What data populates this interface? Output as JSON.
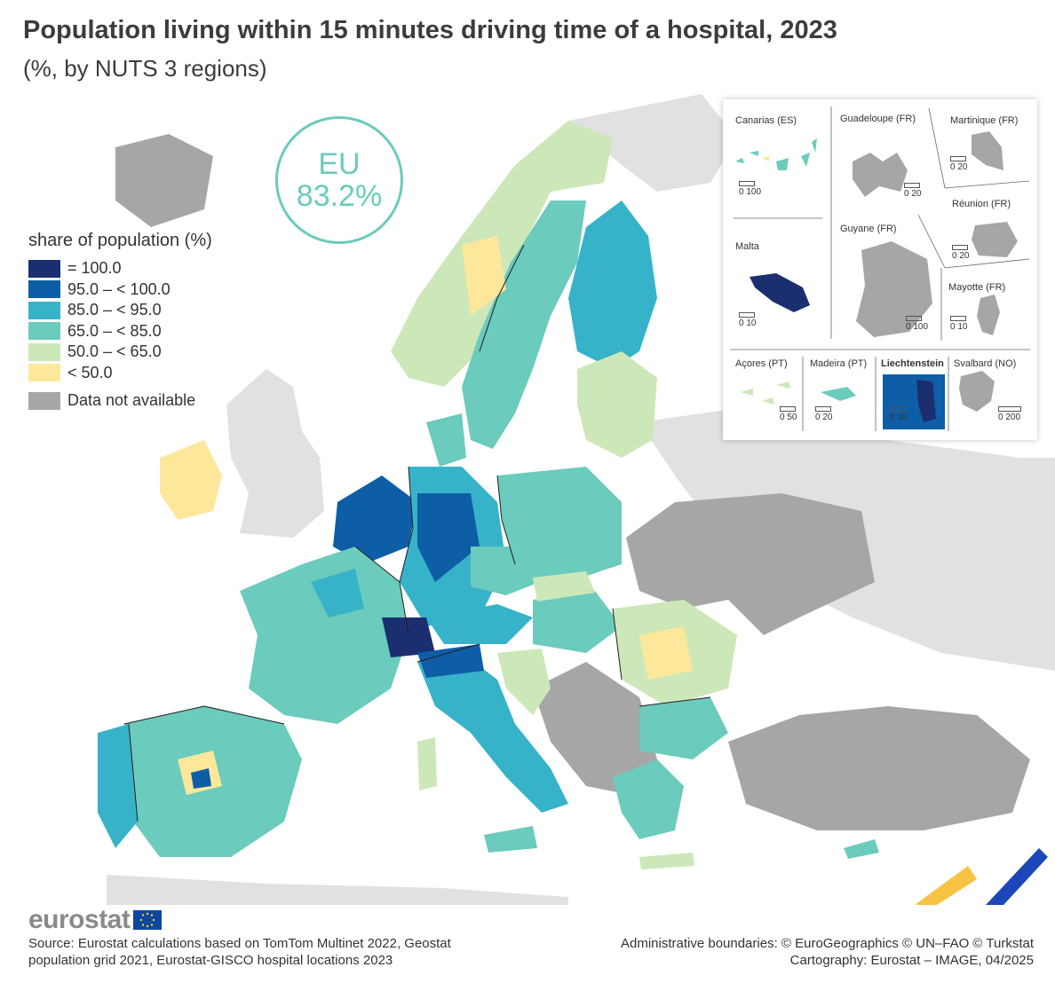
{
  "header": {
    "title": "Population living within 15 minutes driving time of a hospital, 2023",
    "subtitle": "(%, by NUTS 3 regions)"
  },
  "eu_badge": {
    "label": "EU",
    "value": "83.2%"
  },
  "legend": {
    "title": "share of population (%)",
    "classes": [
      {
        "label": "= 100.0",
        "color": "#1b2f70"
      },
      {
        "label": "95.0 – < 100.0",
        "color": "#0d5ea6"
      },
      {
        "label": "85.0 – < 95.0",
        "color": "#37b3c9"
      },
      {
        "label": "65.0 – < 85.0",
        "color": "#6bcbbd"
      },
      {
        "label": "50.0 – < 65.0",
        "color": "#cde8b8"
      },
      {
        "label": "< 50.0",
        "color": "#fde79b"
      }
    ],
    "not_available": {
      "label": "Data not available",
      "color": "#a6a6a6"
    }
  },
  "insets": [
    {
      "name": "Canarias (ES)",
      "scale": "0 100"
    },
    {
      "name": "Guadeloupe (FR)",
      "scale": "0 20"
    },
    {
      "name": "Martinique (FR)",
      "scale": "0 20"
    },
    {
      "name": "Réunion (FR)",
      "scale": "0 20"
    },
    {
      "name": "Malta",
      "scale": "0 10"
    },
    {
      "name": "Guyane (FR)",
      "scale": "0 100"
    },
    {
      "name": "Mayotte (FR)",
      "scale": "0 10"
    },
    {
      "name": "Açores (PT)",
      "scale": "0 50"
    },
    {
      "name": "Madeira (PT)",
      "scale": "0 20"
    },
    {
      "name": "Liechtenstein",
      "scale": "0 10"
    },
    {
      "name": "Svalbard (NO)",
      "scale": "0 200"
    }
  ],
  "footer": {
    "logo": "eurostat",
    "source_line1": "Source: Eurostat calculations based on TomTom Multinet 2022, Geostat",
    "source_line2": "population grid 2021, Eurostat-GISCO hospital locations 2023",
    "credits_line1": "Administrative boundaries: © EuroGeographics © UN–FAO © Turkstat",
    "credits_line2": "Cartography: Eurostat – IMAGE, 04/2025"
  }
}
